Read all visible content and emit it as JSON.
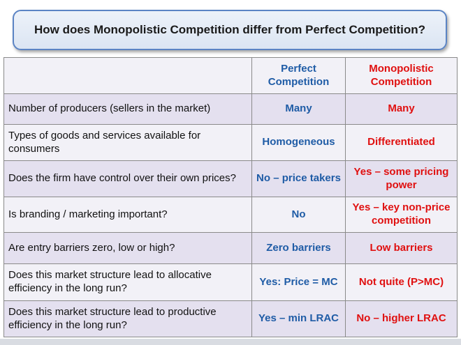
{
  "title": "How does Monopolistic Competition differ from Perfect Competition?",
  "table": {
    "headers": {
      "question": "",
      "perfect": "Perfect Competition",
      "monopolistic": "Monopolistic Competition"
    },
    "rows": [
      {
        "question": "Number of producers (sellers in the market)",
        "perfect": "Many",
        "monopolistic": "Many"
      },
      {
        "question": "Types of goods and services available for consumers",
        "perfect": "Homogeneous",
        "monopolistic": "Differentiated"
      },
      {
        "question": "Does the firm have control over their own prices?",
        "perfect": "No – price takers",
        "monopolistic": "Yes – some pricing power"
      },
      {
        "question": "Is branding / marketing important?",
        "perfect": "No",
        "monopolistic": "Yes – key non-price competition"
      },
      {
        "question": "Are entry barriers zero, low or high?",
        "perfect": "Zero barriers",
        "monopolistic": "Low barriers"
      },
      {
        "question": "Does this market structure lead to allocative efficiency in the long run?",
        "perfect": "Yes: Price = MC",
        "monopolistic": "Not quite (P>MC)"
      },
      {
        "question": "Does this market structure lead to productive efficiency in the long run?",
        "perfect": "Yes – min LRAC",
        "monopolistic": "No – higher LRAC"
      }
    ]
  },
  "colors": {
    "perfect": "#1f5ca6",
    "monopolistic": "#e01010",
    "title_border": "#5b84c4"
  }
}
